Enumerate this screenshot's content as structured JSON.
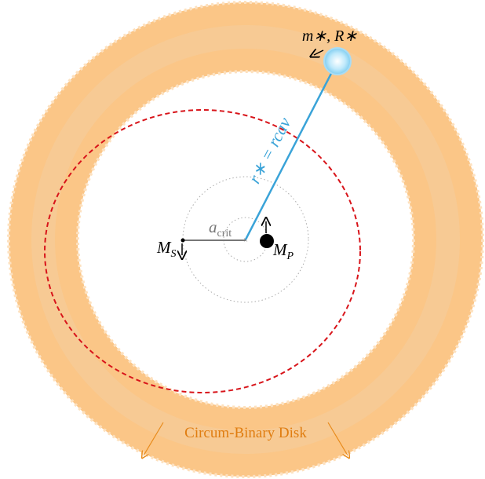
{
  "labels": {
    "star": "m∗, R∗",
    "cavity_radius": "r∗ = rcav",
    "separation": {
      "symbol": "a",
      "subscript": "crit"
    },
    "secondary": {
      "symbol": "M",
      "subscript": "S"
    },
    "primary": {
      "symbol": "M",
      "subscript": "P"
    },
    "disk": "Circum-Binary Disk"
  }
}
